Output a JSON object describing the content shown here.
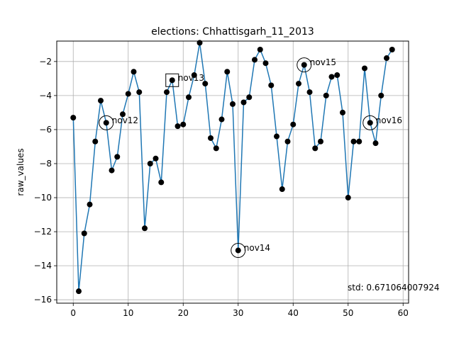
{
  "chart_data": {
    "type": "line",
    "title": "elections: Chhattisgarh_11_2013",
    "xlabel": "",
    "ylabel": "raw_values",
    "xlim": [
      -3,
      61
    ],
    "ylim": [
      -16.2,
      -0.8
    ],
    "xticks": [
      0,
      10,
      20,
      30,
      40,
      50,
      60
    ],
    "yticks": [
      -16,
      -14,
      -12,
      -10,
      -8,
      -6,
      -4,
      -2
    ],
    "xtick_labels": [
      "0",
      "10",
      "20",
      "30",
      "40",
      "50",
      "60"
    ],
    "ytick_labels": [
      "−16",
      "−14",
      "−12",
      "−10",
      "−8",
      "−6",
      "−4",
      "−2"
    ],
    "grid": true,
    "line_color": "#1f77b4",
    "marker_color": "#000000",
    "series": [
      {
        "x": [
          0,
          1,
          2,
          3,
          4,
          5,
          6,
          7,
          8,
          9,
          10,
          11,
          12,
          13,
          14,
          15,
          16,
          17,
          18,
          19,
          20,
          21,
          22,
          23,
          24,
          25,
          26,
          27,
          28,
          29,
          30,
          31,
          32,
          33,
          34,
          35,
          36,
          37,
          38,
          39,
          40,
          41,
          42,
          43,
          44,
          45,
          46,
          47,
          48,
          49,
          50,
          51,
          52,
          53,
          54,
          55,
          56,
          57,
          58
        ],
        "y": [
          -5.3,
          -15.5,
          -12.1,
          -10.4,
          -6.7,
          -4.3,
          -5.6,
          -8.4,
          -7.6,
          -5.1,
          -3.9,
          -2.6,
          -3.8,
          -11.8,
          -8.0,
          -7.7,
          -9.1,
          -3.8,
          -3.1,
          -5.8,
          -5.7,
          -4.1,
          -2.8,
          -0.9,
          -3.3,
          -6.5,
          -7.1,
          -5.4,
          -2.6,
          -4.5,
          -13.1,
          -4.4,
          -4.1,
          -1.9,
          -1.3,
          -2.1,
          -3.4,
          -6.4,
          -9.5,
          -6.7,
          -5.7,
          -3.3,
          -2.2,
          -3.8,
          -7.1,
          -6.7,
          -4.0,
          -2.9,
          -2.8,
          -5.0,
          -10.0,
          -6.7,
          -6.7,
          -2.4,
          -5.6,
          -6.8,
          -4.0,
          -1.8,
          -1.3
        ]
      }
    ],
    "annotations": [
      {
        "label": "nov12",
        "x": 6,
        "y": -5.6,
        "marker": "circle"
      },
      {
        "label": "nov13",
        "x": 18,
        "y": -3.1,
        "marker": "square"
      },
      {
        "label": "nov14",
        "x": 30,
        "y": -13.1,
        "marker": "circle"
      },
      {
        "label": "nov15",
        "x": 42,
        "y": -2.2,
        "marker": "circle"
      },
      {
        "label": "nov16",
        "x": 54,
        "y": -5.6,
        "marker": "circle"
      }
    ],
    "std_text": "std: 0.671064007924"
  }
}
